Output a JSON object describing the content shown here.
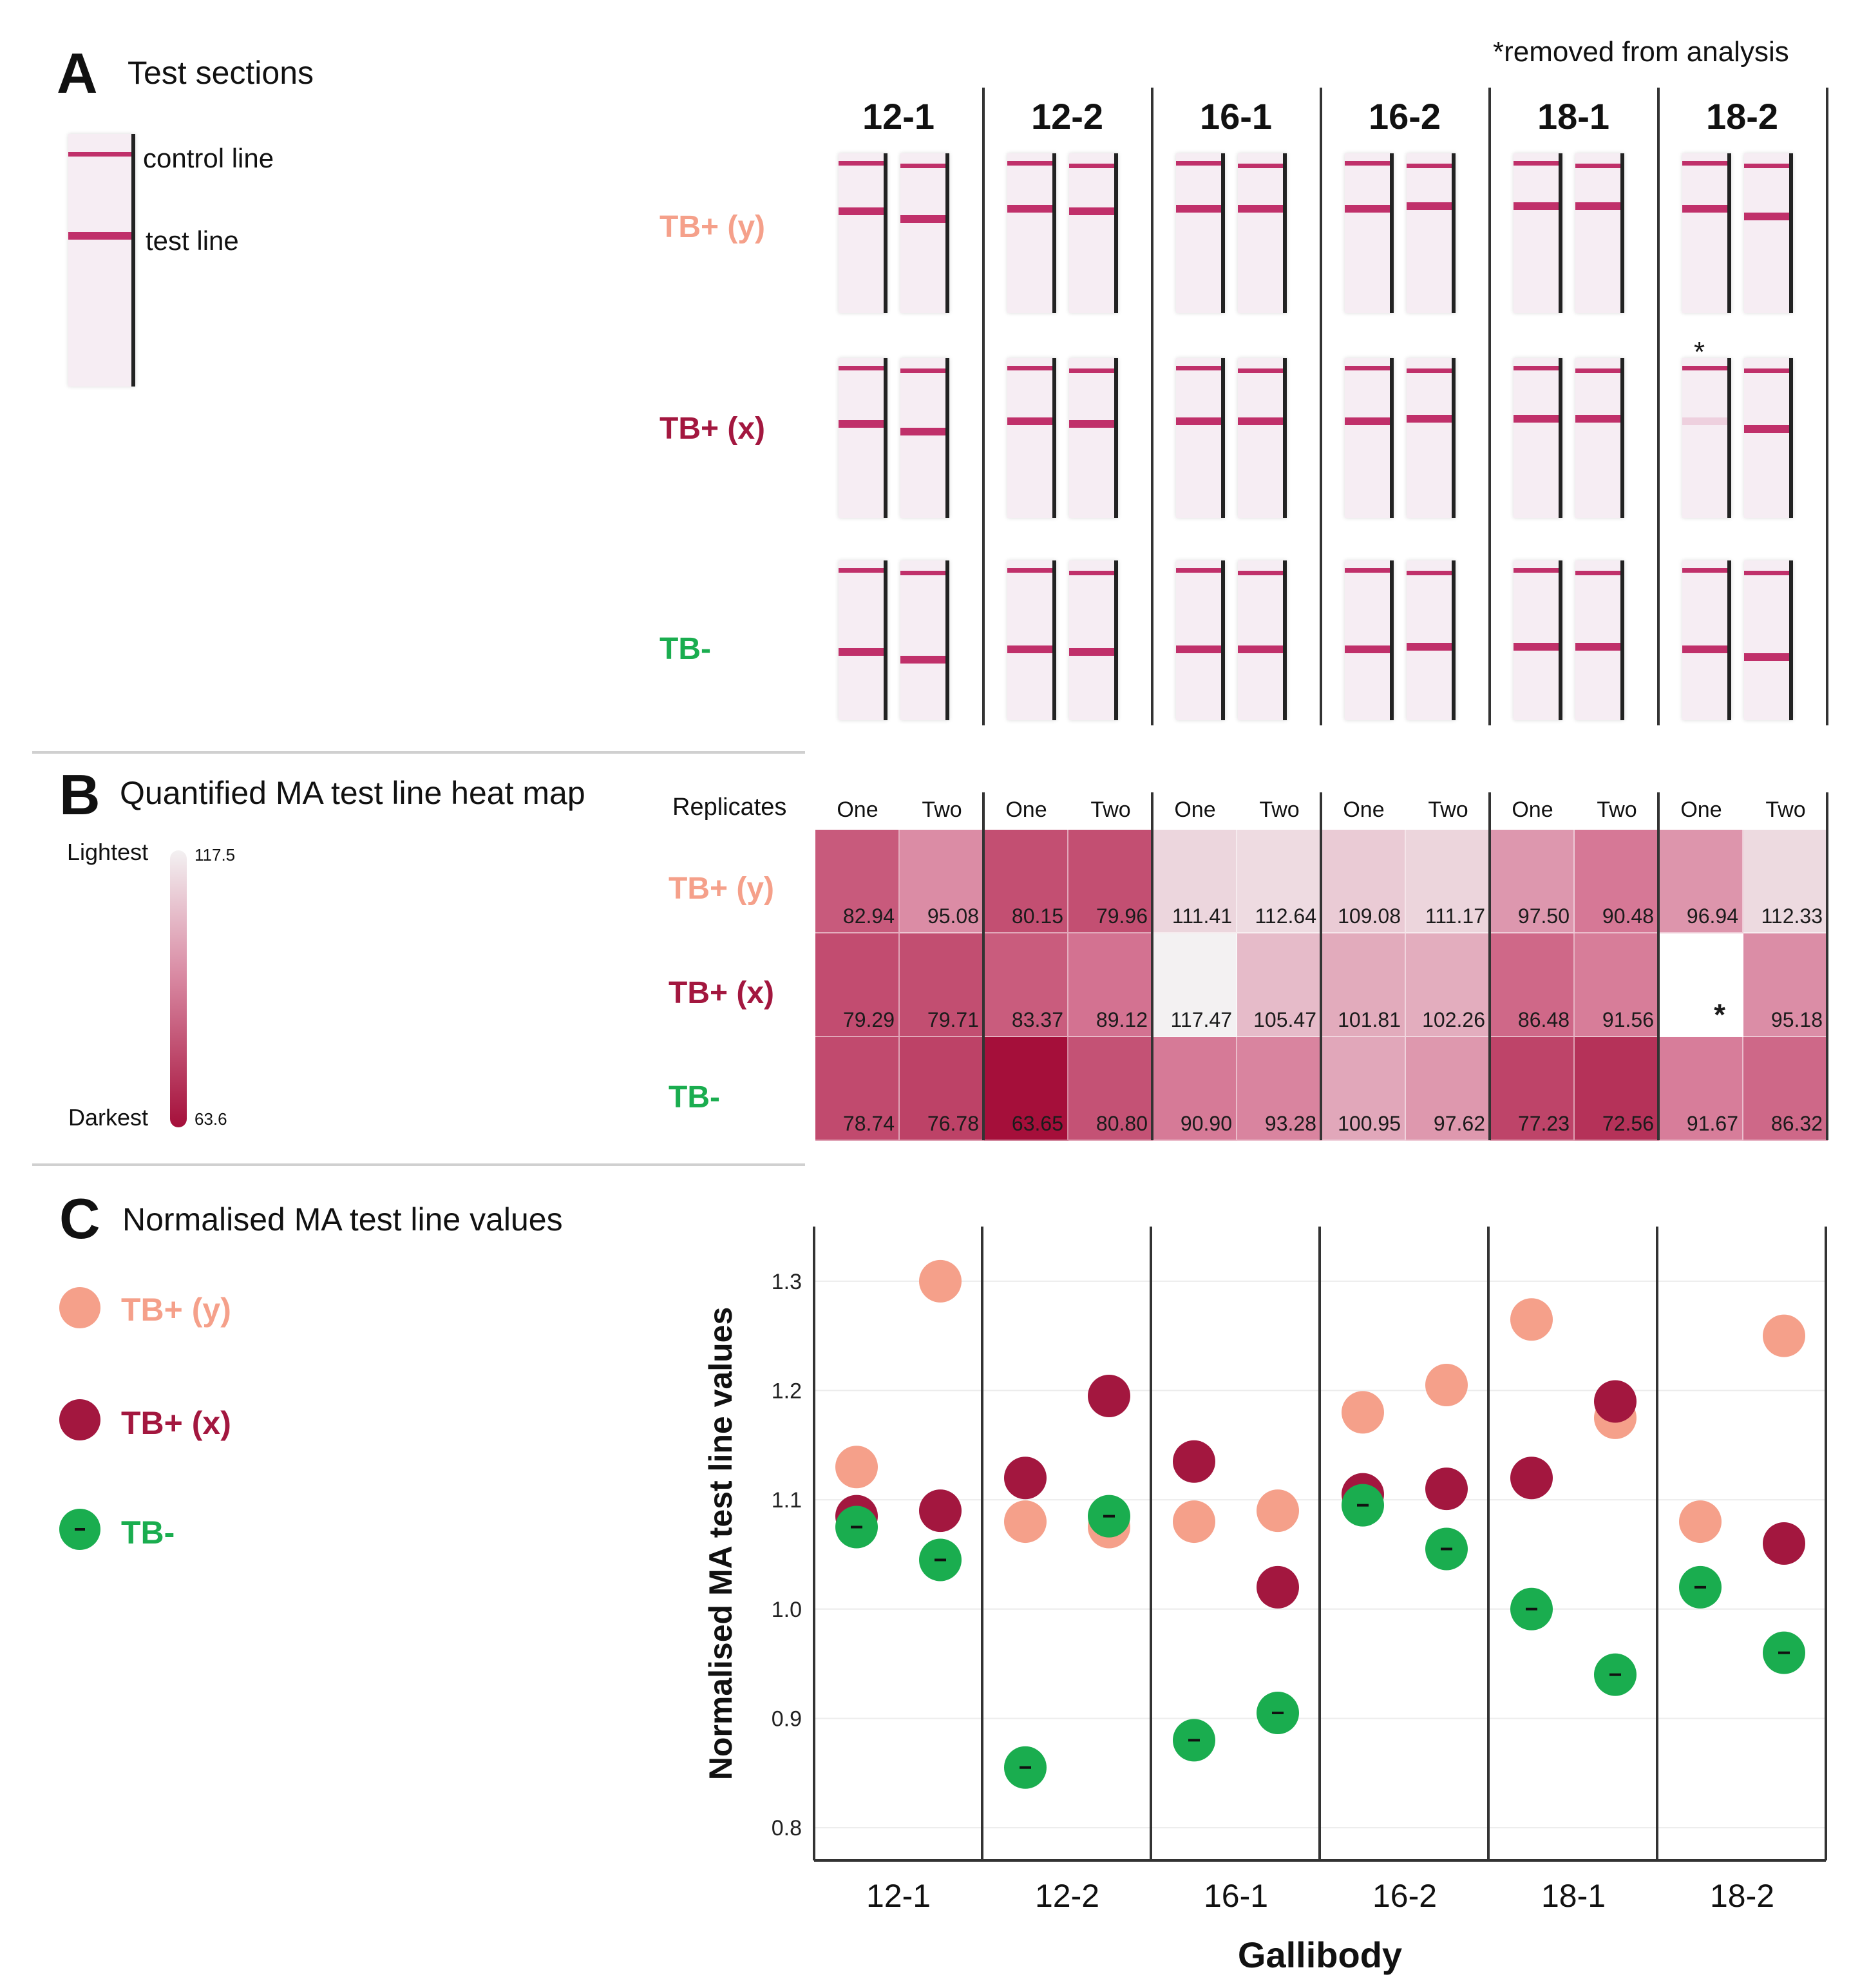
{
  "panel_a": {
    "letter": "A",
    "title": "Test sections",
    "note": "*removed from analysis",
    "example_labels": {
      "control": "control line",
      "test": "test line"
    }
  },
  "panel_b": {
    "letter": "B",
    "title": "Quantified MA test line heat map",
    "replicates_label": "Replicates",
    "scale": {
      "lightest_label": "Lightest",
      "darkest_label": "Darkest",
      "max": "117.5",
      "min": "63.6"
    }
  },
  "panel_c": {
    "letter": "C",
    "title": "Normalised MA test line values"
  },
  "gallibodies": [
    "12-1",
    "12-2",
    "16-1",
    "16-2",
    "18-1",
    "18-2"
  ],
  "groups": [
    "TB+ (y)",
    "TB+ (x)",
    "TB-"
  ],
  "replicates": [
    "One",
    "Two"
  ],
  "removed_marker": "*",
  "colors": {
    "tb_pos_y": "#f5a08a",
    "tb_pos_x": "#a3173f",
    "tb_neg": "#1aad4f",
    "heat_light": "#f3f1f2",
    "heat_dark": "#a50f3a"
  },
  "chart_data": [
    {
      "type": "heatmap",
      "title": "Quantified MA test line heat map",
      "columns": [
        "12-1 One",
        "12-1 Two",
        "12-2 One",
        "12-2 Two",
        "16-1 One",
        "16-1 Two",
        "16-2 One",
        "16-2 Two",
        "18-1 One",
        "18-1 Two",
        "18-2 One",
        "18-2 Two"
      ],
      "rows": [
        "TB+ (y)",
        "TB+ (x)",
        "TB-"
      ],
      "values": [
        [
          "82.94",
          "95.08",
          "80.15",
          "79.96",
          "111.41",
          "112.64",
          "109.08",
          "111.17",
          "97.50",
          "90.48",
          "96.94",
          "112.33"
        ],
        [
          "79.29",
          "79.71",
          "83.37",
          "89.12",
          "117.47",
          "105.47",
          "101.81",
          "102.26",
          "86.48",
          "91.56",
          "*",
          "95.18"
        ],
        [
          "78.74",
          "76.78",
          "63.65",
          "80.80",
          "90.90",
          "93.28",
          "100.95",
          "97.62",
          "77.23",
          "72.56",
          "91.67",
          "86.32"
        ]
      ],
      "scale_range": [
        63.6,
        117.5
      ]
    },
    {
      "type": "scatter",
      "title": "Normalised MA test line values",
      "xlabel": "Gallibody",
      "ylabel": "Normalised MA test line values",
      "categories": [
        "12-1",
        "12-2",
        "16-1",
        "16-2",
        "18-1",
        "18-2"
      ],
      "yticks": [
        "0.8",
        "0.9",
        "1.0",
        "1.1",
        "1.2",
        "1.3"
      ],
      "ylim": [
        0.77,
        1.35
      ],
      "series": [
        {
          "name": "TB+ (y)",
          "values": [
            [
              1.13,
              1.3
            ],
            [
              1.08,
              1.075
            ],
            [
              1.08,
              1.09
            ],
            [
              1.18,
              1.205
            ],
            [
              1.265,
              1.175
            ],
            [
              1.08,
              1.25
            ]
          ]
        },
        {
          "name": "TB+ (x)",
          "values": [
            [
              1.085,
              1.09
            ],
            [
              1.12,
              1.195
            ],
            [
              1.135,
              1.02
            ],
            [
              1.105,
              1.11
            ],
            [
              1.12,
              1.19
            ],
            [
              null,
              1.06
            ]
          ]
        },
        {
          "name": "TB-",
          "values": [
            [
              1.075,
              1.045
            ],
            [
              0.855,
              1.085
            ],
            [
              0.88,
              0.905
            ],
            [
              1.095,
              1.055
            ],
            [
              1.0,
              0.94
            ],
            [
              1.02,
              0.96
            ]
          ]
        }
      ]
    }
  ]
}
